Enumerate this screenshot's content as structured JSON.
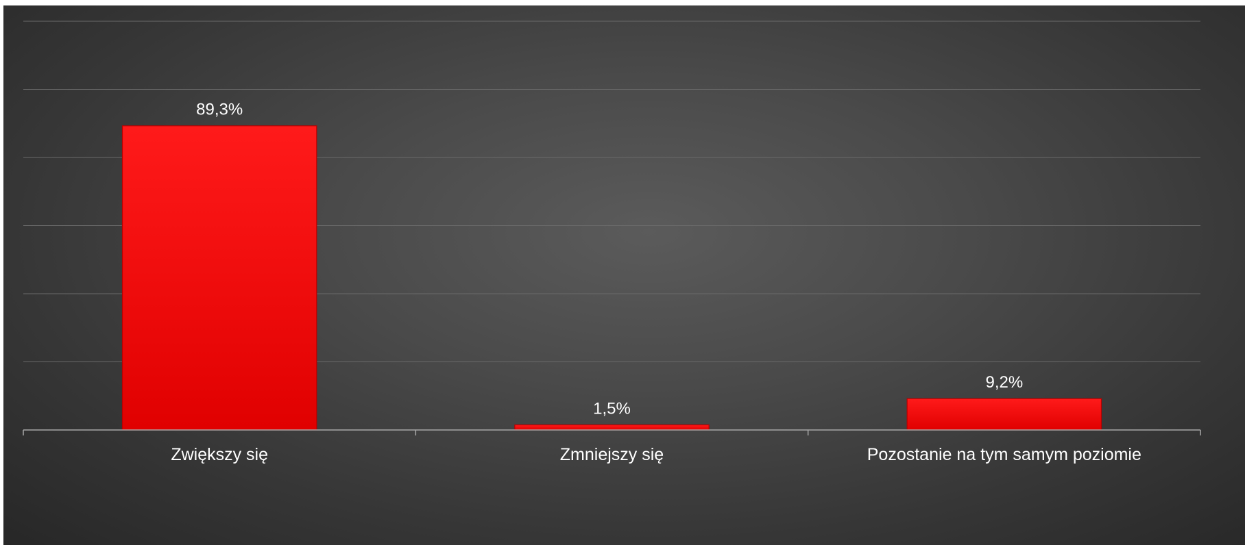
{
  "chart_data": {
    "type": "bar",
    "title": "",
    "xlabel": "",
    "ylabel": "",
    "categories": [
      "Zwiększy się",
      "Zmniejszy się",
      "Pozostanie na tym samym poziomie"
    ],
    "values": [
      89.3,
      1.5,
      9.2
    ],
    "value_labels": [
      "89,3%",
      "1,5%",
      "9,2%"
    ],
    "unit": "%",
    "ylim": [
      0,
      120
    ],
    "y_gridline_step": 20,
    "grid": true,
    "y_axis_visible": false,
    "legend": "none",
    "colors": {
      "bar": "#ff0000",
      "bar_edge": "#b80000",
      "gridline": "#6a6a6a",
      "axis": "#a8a8a8",
      "text": "#ffffff"
    }
  }
}
